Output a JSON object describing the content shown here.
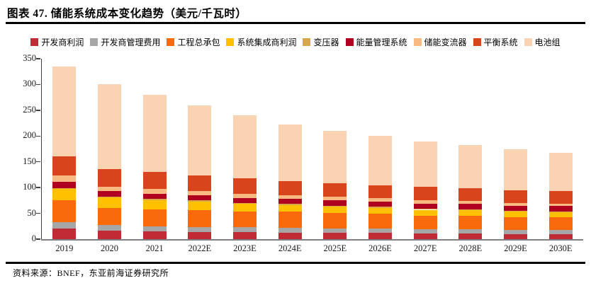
{
  "title": "图表 47. 储能系统成本变化趋势（美元/千瓦时）",
  "source": "资料来源：BNEF，东亚前海证券研究所",
  "axis": {
    "y_ticks": [
      0,
      50,
      100,
      150,
      200,
      250,
      300,
      350
    ],
    "y_axis_color": "#404040",
    "x_axis_color": "#7f7f7f"
  },
  "chart_data": {
    "type": "bar",
    "stacked": true,
    "title": "储能系统成本变化趋势",
    "unit": "美元/千瓦时",
    "xlabel": "",
    "ylabel": "",
    "ylim": [
      0,
      350
    ],
    "ytick_step": 50,
    "grid": false,
    "legend_position": "top",
    "categories": [
      "2019",
      "2020",
      "2021",
      "2022E",
      "2023E",
      "2024E",
      "2025E",
      "2026E",
      "2027E",
      "2028E",
      "2029E",
      "2030E"
    ],
    "series": [
      {
        "name": "开发商利润",
        "color": "#C12B36",
        "values": [
          20,
          16,
          15,
          14,
          14,
          13,
          12,
          12,
          11,
          11,
          10,
          10
        ]
      },
      {
        "name": "开发商管理费用",
        "color": "#A6A6A6",
        "values": [
          13,
          11,
          10,
          10,
          9,
          9,
          8,
          8,
          8,
          8,
          8,
          8
        ]
      },
      {
        "name": "工程总承包",
        "color": "#F86A0C",
        "values": [
          42,
          33,
          32,
          32,
          31,
          31,
          31,
          29,
          27,
          26,
          25,
          24
        ]
      },
      {
        "name": "系统集成商利润",
        "color": "#FFC000",
        "values": [
          22,
          21,
          19,
          17,
          14,
          13,
          12,
          12,
          11,
          11,
          10,
          10
        ]
      },
      {
        "name": "变压器",
        "color": "#D8A848",
        "values": [
          2,
          2,
          2,
          2,
          2,
          2,
          2,
          2,
          2,
          2,
          2,
          2
        ]
      },
      {
        "name": "能量管理系统",
        "color": "#B00020",
        "values": [
          12,
          10,
          10,
          10,
          10,
          10,
          10,
          10,
          10,
          10,
          10,
          10
        ]
      },
      {
        "name": "储能变流器",
        "color": "#F8BA80",
        "values": [
          13,
          9,
          9,
          8,
          8,
          7,
          7,
          6,
          6,
          6,
          5,
          5
        ]
      },
      {
        "name": "平衡系统",
        "color": "#D8451C",
        "values": [
          36,
          34,
          33,
          31,
          30,
          28,
          27,
          26,
          26,
          25,
          25,
          25
        ]
      },
      {
        "name": "电池组",
        "color": "#FAD3B2",
        "values": [
          175,
          164,
          150,
          136,
          122,
          109,
          101,
          95,
          89,
          83,
          80,
          74
        ]
      }
    ],
    "totals": [
      335,
      300,
      280,
      260,
      240,
      222,
      210,
      200,
      190,
      182,
      175,
      168
    ]
  }
}
